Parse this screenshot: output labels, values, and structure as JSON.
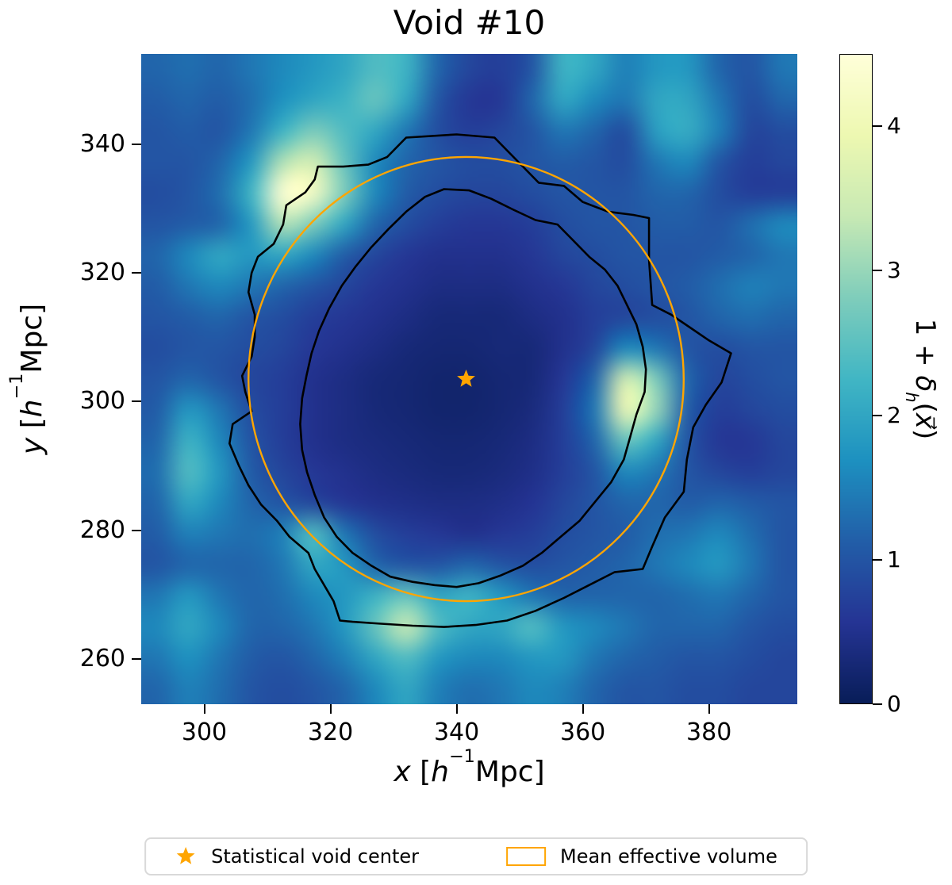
{
  "figure": {
    "background": "#ffffff"
  },
  "labels": {
    "x": {
      "variable": "x",
      "open": " [",
      "symbol": "h",
      "exponent": "−1",
      "unit": "Mpc",
      "close": "]"
    },
    "y": {
      "variable": "y",
      "open": " [",
      "symbol": "h",
      "exponent": "−1",
      "unit": "Mpc",
      "close": "]"
    },
    "colorbar": {
      "prefix": "1 + ",
      "delta": "δ",
      "subscript": "h",
      "open_paren": "(",
      "vector_x": "x⃗",
      "close_paren": ")"
    }
  },
  "legend": {
    "items": [
      {
        "label": "Statistical void center",
        "marker": "star",
        "color": "#FFA500"
      },
      {
        "label": "Mean effective volume",
        "marker": "circle-outline",
        "color": "#FFA500"
      }
    ]
  },
  "chart_data": {
    "type": "heatmap",
    "title": "Void #10",
    "xlabel": "x [h^-1 Mpc]",
    "ylabel": "y [h^-1 Mpc]",
    "colorbar_label": "1 + delta_h(x)",
    "x_range": [
      290,
      394
    ],
    "y_range": [
      253,
      354
    ],
    "x_ticks": [
      300,
      320,
      340,
      360,
      380
    ],
    "y_ticks": [
      260,
      280,
      300,
      320,
      340
    ],
    "value_range": [
      0,
      4.5
    ],
    "colorbar_ticks": [
      0,
      1,
      2,
      3,
      4
    ],
    "colormap": "YlGnBu_r",
    "colormap_stops": [
      [
        0.0,
        "#081d58"
      ],
      [
        0.125,
        "#253494"
      ],
      [
        0.25,
        "#225ea8"
      ],
      [
        0.375,
        "#1d91c0"
      ],
      [
        0.5,
        "#41b6c4"
      ],
      [
        0.625,
        "#7fcdbb"
      ],
      [
        0.75,
        "#c7e9b4"
      ],
      [
        0.875,
        "#edf8b1"
      ],
      [
        1.0,
        "#ffffd9"
      ]
    ],
    "marker_color": "#FFA500",
    "contour_color": "#000000",
    "void_center": {
      "x": 341.5,
      "y": 303.5
    },
    "effective_volume_circle": {
      "cx": 341.5,
      "cy": 303.5,
      "r": 34.5
    },
    "grid": {
      "x0": 290,
      "x1": 394,
      "y0": 354,
      "y1": 253,
      "note": "rows top(y=354) to bottom(y=253), cols x=290..394, values are 1+delta_h",
      "values": [
        [
          1.2,
          1.3,
          1.2,
          1.4,
          1.6,
          1.8,
          2.0,
          2.4,
          2.2,
          1.2,
          0.8,
          0.7,
          1.0,
          2.2,
          2.0,
          1.5,
          1.8,
          1.8,
          1.2,
          1.0,
          1.4
        ],
        [
          1.1,
          1.2,
          1.1,
          1.3,
          1.7,
          2.0,
          2.2,
          2.6,
          2.0,
          1.0,
          0.6,
          0.6,
          1.2,
          2.0,
          1.6,
          1.4,
          2.0,
          2.0,
          1.4,
          0.9,
          1.2
        ],
        [
          1.0,
          1.1,
          1.0,
          1.4,
          2.2,
          2.8,
          2.4,
          2.0,
          1.4,
          0.9,
          0.7,
          0.8,
          1.0,
          1.4,
          1.2,
          0.9,
          1.9,
          2.1,
          1.5,
          0.8,
          0.9
        ],
        [
          1.0,
          1.0,
          1.2,
          1.8,
          3.2,
          3.6,
          2.6,
          1.6,
          1.2,
          1.0,
          0.9,
          0.9,
          1.0,
          1.1,
          1.0,
          0.9,
          1.4,
          1.6,
          1.0,
          0.7,
          0.8
        ],
        [
          0.9,
          1.0,
          1.3,
          2.2,
          4.4,
          4.2,
          2.8,
          1.6,
          1.1,
          0.9,
          0.8,
          0.8,
          0.9,
          1.0,
          1.0,
          1.0,
          1.2,
          1.2,
          0.9,
          0.7,
          0.7
        ],
        [
          1.0,
          1.1,
          1.2,
          1.8,
          3.2,
          2.8,
          2.0,
          1.2,
          0.9,
          0.7,
          0.6,
          0.6,
          0.7,
          0.9,
          1.0,
          1.0,
          1.1,
          1.1,
          1.0,
          1.3,
          1.6
        ],
        [
          1.2,
          1.6,
          2.0,
          1.8,
          2.0,
          1.6,
          1.1,
          0.8,
          0.6,
          0.5,
          0.5,
          0.5,
          0.6,
          0.8,
          0.9,
          1.0,
          1.0,
          1.0,
          1.1,
          1.2,
          1.4
        ],
        [
          1.1,
          1.4,
          1.6,
          1.4,
          1.2,
          1.0,
          0.8,
          0.6,
          0.5,
          0.4,
          0.4,
          0.4,
          0.5,
          0.6,
          0.8,
          0.9,
          1.0,
          1.1,
          1.3,
          1.5,
          1.4
        ],
        [
          1.0,
          1.1,
          1.2,
          1.0,
          0.9,
          0.7,
          0.6,
          0.5,
          0.4,
          0.3,
          0.3,
          0.3,
          0.4,
          0.5,
          0.7,
          0.8,
          0.9,
          1.0,
          1.2,
          1.3,
          1.2
        ],
        [
          0.9,
          1.0,
          1.0,
          0.9,
          0.8,
          0.6,
          0.5,
          0.4,
          0.3,
          0.25,
          0.25,
          0.3,
          0.3,
          0.5,
          0.8,
          1.6,
          1.4,
          1.0,
          0.9,
          1.0,
          1.0
        ],
        [
          1.0,
          1.2,
          1.0,
          0.8,
          0.7,
          0.5,
          0.4,
          0.3,
          0.25,
          0.2,
          0.2,
          0.25,
          0.3,
          0.6,
          1.2,
          3.6,
          2.8,
          1.2,
          0.8,
          0.9,
          1.0
        ],
        [
          1.1,
          1.8,
          1.4,
          0.9,
          0.7,
          0.5,
          0.4,
          0.3,
          0.25,
          0.2,
          0.2,
          0.25,
          0.35,
          0.7,
          1.4,
          4.0,
          3.0,
          1.1,
          0.7,
          0.8,
          0.9
        ],
        [
          1.2,
          2.2,
          1.6,
          1.0,
          0.7,
          0.5,
          0.4,
          0.35,
          0.3,
          0.25,
          0.25,
          0.3,
          0.4,
          0.7,
          1.2,
          2.6,
          2.0,
          1.0,
          0.6,
          0.6,
          0.8
        ],
        [
          1.3,
          2.4,
          1.8,
          1.1,
          0.8,
          0.6,
          0.5,
          0.4,
          0.35,
          0.3,
          0.3,
          0.35,
          0.45,
          0.7,
          1.0,
          1.6,
          1.4,
          1.0,
          0.8,
          0.7,
          0.8
        ],
        [
          1.2,
          2.0,
          1.6,
          1.2,
          1.0,
          0.8,
          0.6,
          0.5,
          0.45,
          0.4,
          0.4,
          0.45,
          0.55,
          0.8,
          1.0,
          1.2,
          1.2,
          1.1,
          1.2,
          1.1,
          1.0
        ],
        [
          1.1,
          1.5,
          1.4,
          1.3,
          1.5,
          2.4,
          1.4,
          0.9,
          0.7,
          0.6,
          0.5,
          0.6,
          0.7,
          0.9,
          1.0,
          1.1,
          1.3,
          1.4,
          1.6,
          1.3,
          1.0
        ],
        [
          1.0,
          1.2,
          1.2,
          1.2,
          1.4,
          2.0,
          1.8,
          1.2,
          1.0,
          1.0,
          1.2,
          1.0,
          0.9,
          1.0,
          1.1,
          1.2,
          1.4,
          1.6,
          1.8,
          1.4,
          1.0
        ],
        [
          1.4,
          1.8,
          1.4,
          1.2,
          1.3,
          1.6,
          1.8,
          2.2,
          2.6,
          2.0,
          2.2,
          1.8,
          1.4,
          1.2,
          1.2,
          1.2,
          1.2,
          1.3,
          1.4,
          1.2,
          1.0
        ],
        [
          1.6,
          2.0,
          1.6,
          1.2,
          1.2,
          1.4,
          1.8,
          2.6,
          3.4,
          2.4,
          2.0,
          2.0,
          2.4,
          1.8,
          1.6,
          1.4,
          1.2,
          1.2,
          1.2,
          1.0,
          0.9
        ],
        [
          1.4,
          1.7,
          1.4,
          1.1,
          1.0,
          1.2,
          1.5,
          2.0,
          2.4,
          1.8,
          1.6,
          1.6,
          1.8,
          1.8,
          1.4,
          1.2,
          1.1,
          1.0,
          1.0,
          0.9,
          0.8
        ],
        [
          1.2,
          1.5,
          1.3,
          1.0,
          0.9,
          1.0,
          1.2,
          1.6,
          2.0,
          1.5,
          1.3,
          1.4,
          1.6,
          1.5,
          1.2,
          1.0,
          1.0,
          0.9,
          0.9,
          0.8,
          0.8
        ]
      ]
    },
    "contours": {
      "outer": [
        [
          332,
          341
        ],
        [
          340,
          341.5
        ],
        [
          346,
          341
        ],
        [
          350,
          337
        ],
        [
          353,
          334
        ],
        [
          357,
          333.5
        ],
        [
          360,
          331
        ],
        [
          364,
          329.5
        ],
        [
          368,
          329
        ],
        [
          370.5,
          328.5
        ],
        [
          370.5,
          322
        ],
        [
          371,
          315
        ],
        [
          374,
          313.5
        ],
        [
          377,
          311.5
        ],
        [
          380,
          309.5
        ],
        [
          383.5,
          307.5
        ],
        [
          382,
          303
        ],
        [
          379.5,
          299.5
        ],
        [
          377.5,
          296
        ],
        [
          376.5,
          291
        ],
        [
          376,
          286
        ],
        [
          373,
          282
        ],
        [
          371,
          277.5
        ],
        [
          369.5,
          274
        ],
        [
          365,
          273.5
        ],
        [
          361,
          271.5
        ],
        [
          357,
          269.5
        ],
        [
          352.5,
          267.5
        ],
        [
          348,
          266
        ],
        [
          343,
          265.3
        ],
        [
          338,
          265
        ],
        [
          333,
          265.2
        ],
        [
          328,
          265.5
        ],
        [
          323.5,
          265.8
        ],
        [
          321.5,
          266
        ],
        [
          320.5,
          269
        ],
        [
          319,
          271.5
        ],
        [
          317.5,
          274
        ],
        [
          316.5,
          276.5
        ],
        [
          313.5,
          279
        ],
        [
          311.5,
          281.5
        ],
        [
          309,
          284
        ],
        [
          307,
          287
        ],
        [
          305.5,
          290
        ],
        [
          304,
          293.5
        ],
        [
          304.5,
          296.5
        ],
        [
          307.5,
          298.5
        ],
        [
          306.5,
          301.5
        ],
        [
          306,
          304
        ],
        [
          307.5,
          307
        ],
        [
          308,
          310
        ],
        [
          308,
          313.5
        ],
        [
          307,
          317
        ],
        [
          307.5,
          320
        ],
        [
          308.5,
          322.5
        ],
        [
          311,
          324.5
        ],
        [
          312.5,
          327.5
        ],
        [
          313,
          330.5
        ],
        [
          316,
          332.5
        ],
        [
          317.5,
          334.5
        ],
        [
          318,
          336.5
        ],
        [
          322,
          336.5
        ],
        [
          326,
          336.8
        ],
        [
          329,
          338
        ]
      ],
      "inner": [
        [
          338,
          333
        ],
        [
          342,
          332.8
        ],
        [
          345.5,
          331.5
        ],
        [
          349,
          329.8
        ],
        [
          352.5,
          328.2
        ],
        [
          356,
          327.5
        ],
        [
          358.5,
          325
        ],
        [
          361,
          322.5
        ],
        [
          363.5,
          320.5
        ],
        [
          365.5,
          318
        ],
        [
          367,
          315
        ],
        [
          368.5,
          312
        ],
        [
          369.5,
          308.5
        ],
        [
          370,
          305
        ],
        [
          369.8,
          301.5
        ],
        [
          368.5,
          298
        ],
        [
          367.5,
          294.5
        ],
        [
          366.5,
          291
        ],
        [
          364.5,
          287.5
        ],
        [
          362,
          284.5
        ],
        [
          359.5,
          281.5
        ],
        [
          356.5,
          279
        ],
        [
          353.5,
          276.5
        ],
        [
          350.5,
          274.5
        ],
        [
          347,
          273
        ],
        [
          343.5,
          271.8
        ],
        [
          340,
          271.2
        ],
        [
          336.5,
          271.5
        ],
        [
          333,
          272
        ],
        [
          329.5,
          272.8
        ],
        [
          326.5,
          274.5
        ],
        [
          323.5,
          276.5
        ],
        [
          321,
          279
        ],
        [
          319,
          282
        ],
        [
          317.5,
          285.5
        ],
        [
          316.3,
          289
        ],
        [
          315.5,
          292.5
        ],
        [
          315.2,
          296.5
        ],
        [
          315.5,
          300.5
        ],
        [
          316.2,
          304
        ],
        [
          317,
          307.5
        ],
        [
          318.2,
          311
        ],
        [
          319.8,
          314.5
        ],
        [
          321.8,
          318
        ],
        [
          324,
          321
        ],
        [
          326.5,
          324
        ],
        [
          329.2,
          326.8
        ],
        [
          332,
          329.5
        ],
        [
          335,
          331.8
        ]
      ]
    }
  }
}
